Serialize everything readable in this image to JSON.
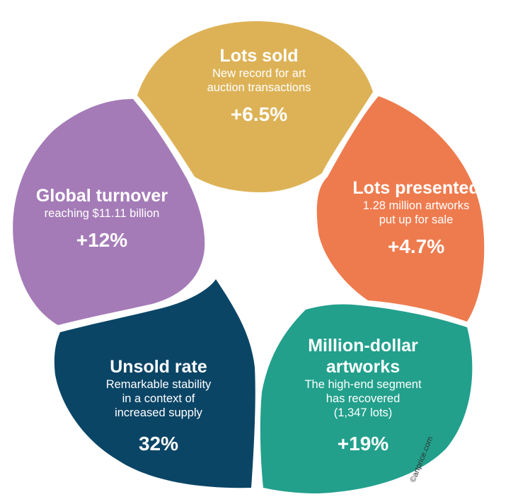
{
  "petals": {
    "lots_sold": {
      "title": "Lots sold",
      "desc1": "New record for art",
      "desc2": "auction transactions",
      "value": "+6.5%",
      "color": "#DDB256"
    },
    "lots_presented": {
      "title": "Lots presented",
      "desc1": "1.28 million artworks",
      "desc2": "put up for sale",
      "value": "+4.7%",
      "color": "#EE7B4E"
    },
    "million_dollar": {
      "title1": "Million-dollar",
      "title2": "artworks",
      "desc1": "The high-end segment",
      "desc2": "has recovered",
      "desc3": "(1,347 lots)",
      "value": "+19%",
      "color": "#22A08C"
    },
    "unsold_rate": {
      "title": "Unsold rate",
      "desc1": "Remarkable stability",
      "desc2": "in a context of",
      "desc3": "increased supply",
      "value": "32%",
      "color": "#0B4566"
    },
    "global_turnover": {
      "title": "Global turnover",
      "desc1": "reaching $11.11 billion",
      "value": "+12%",
      "color": "#A47BB7"
    }
  },
  "copyright": "©artprice.com"
}
